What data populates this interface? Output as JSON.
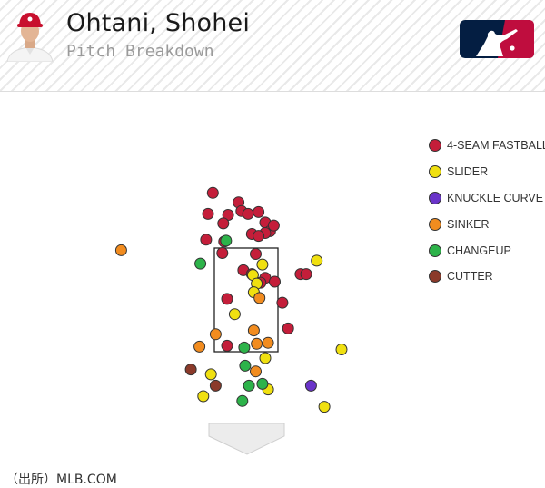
{
  "header": {
    "player_name": "Ohtani, Shohei",
    "subtitle": "Pitch Breakdown",
    "cap_color": "#c8102e",
    "logo_colors": {
      "left": "#041e42",
      "right": "#bf0d3e"
    }
  },
  "source_note": "（出所）MLB.COM",
  "chart_data": {
    "type": "scatter",
    "title": "Pitch Breakdown",
    "legend_position": "right",
    "grid": false,
    "strike_zone": true,
    "series": [
      {
        "name": "4-SEAM FASTBALL",
        "color": "#c41e3a",
        "points": [
          [
            -0.35,
            2.93
          ],
          [
            -0.4,
            2.71
          ],
          [
            -0.08,
            2.83
          ],
          [
            -0.05,
            2.74
          ],
          [
            0.02,
            2.71
          ],
          [
            0.13,
            2.73
          ],
          [
            -0.19,
            2.7
          ],
          [
            -0.24,
            2.61
          ],
          [
            0.2,
            2.62
          ],
          [
            0.25,
            2.53
          ],
          [
            0.29,
            2.59
          ],
          [
            0.2,
            2.51
          ],
          [
            0.06,
            2.5
          ],
          [
            0.13,
            2.48
          ],
          [
            -0.42,
            2.44
          ],
          [
            -0.23,
            2.42
          ],
          [
            -0.25,
            2.3
          ],
          [
            0.1,
            2.29
          ],
          [
            -0.03,
            2.12
          ],
          [
            0.06,
            2.08
          ],
          [
            0.2,
            2.04
          ],
          [
            0.15,
            1.99
          ],
          [
            0.3,
            2.0
          ],
          [
            0.57,
            2.08
          ],
          [
            0.63,
            2.08
          ],
          [
            -0.2,
            1.82
          ],
          [
            0.38,
            1.78
          ],
          [
            0.44,
            1.51
          ],
          [
            -0.2,
            1.33
          ]
        ]
      },
      {
        "name": "SLIDER",
        "color": "#f0e010",
        "points": [
          [
            0.74,
            2.22
          ],
          [
            0.17,
            2.18
          ],
          [
            0.07,
            2.07
          ],
          [
            0.11,
            1.98
          ],
          [
            0.08,
            1.89
          ],
          [
            -0.12,
            1.66
          ],
          [
            0.2,
            1.2
          ],
          [
            1.0,
            1.29
          ],
          [
            -0.37,
            1.03
          ],
          [
            0.23,
            0.87
          ],
          [
            -0.45,
            0.8
          ],
          [
            0.82,
            0.69
          ]
        ]
      },
      {
        "name": "KNUCKLE CURVE",
        "color": "#6a34c9",
        "points": [
          [
            0.68,
            0.91
          ]
        ]
      },
      {
        "name": "SINKER",
        "color": "#f28c1f",
        "points": [
          [
            -1.31,
            2.33
          ],
          [
            0.14,
            1.83
          ],
          [
            0.08,
            1.49
          ],
          [
            -0.32,
            1.45
          ],
          [
            0.11,
            1.35
          ],
          [
            0.23,
            1.36
          ],
          [
            -0.49,
            1.32
          ],
          [
            0.1,
            1.06
          ]
        ]
      },
      {
        "name": "CHANGEUP",
        "color": "#2db34a",
        "points": [
          [
            -0.21,
            2.43
          ],
          [
            -0.48,
            2.19
          ],
          [
            -0.02,
            1.31
          ],
          [
            -0.01,
            1.12
          ],
          [
            0.17,
            0.93
          ],
          [
            0.03,
            0.91
          ],
          [
            -0.04,
            0.75
          ]
        ]
      },
      {
        "name": "CUTTER",
        "color": "#8b3a2a",
        "points": [
          [
            -0.58,
            1.08
          ],
          [
            -0.32,
            0.91
          ]
        ]
      }
    ],
    "xlim": [
      -1.8,
      1.85
    ],
    "ylim": [
      0.35,
      3.25
    ]
  }
}
